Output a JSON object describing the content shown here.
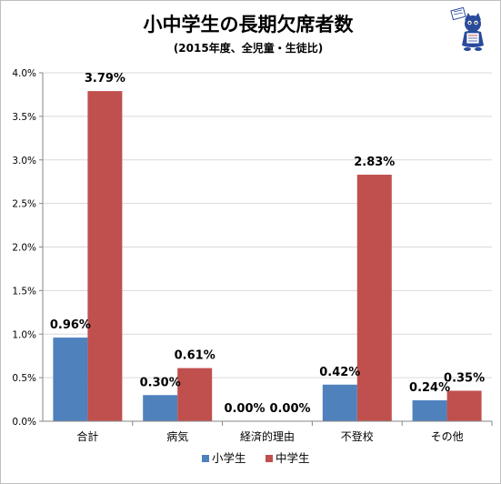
{
  "chart_data": {
    "type": "bar",
    "title": "小中学生の長期欠席者数",
    "subtitle": "(2015年度、全児童・生徒比)",
    "categories": [
      "合計",
      "病気",
      "経済的理由",
      "不登校",
      "その他"
    ],
    "series": [
      {
        "name": "小学生",
        "values": [
          0.96,
          0.3,
          0.0,
          0.42,
          0.24
        ],
        "labels": [
          "0.96%",
          "0.30%",
          "0.00%",
          "0.42%",
          "0.24%"
        ],
        "color": "#4f81bd"
      },
      {
        "name": "中学生",
        "values": [
          3.79,
          0.61,
          0.0,
          2.83,
          0.35
        ],
        "labels": [
          "3.79%",
          "0.61%",
          "0.00%",
          "2.83%",
          "0.35%"
        ],
        "color": "#c0504d"
      }
    ],
    "yticks": [
      "0.0%",
      "0.5%",
      "1.0%",
      "1.5%",
      "2.0%",
      "2.5%",
      "3.0%",
      "3.5%",
      "4.0%"
    ],
    "ylim": [
      0,
      4.0
    ],
    "grid": true,
    "legend": "bottom"
  },
  "decoration": {
    "mascot": "newspaper-cat-mascot-icon"
  }
}
